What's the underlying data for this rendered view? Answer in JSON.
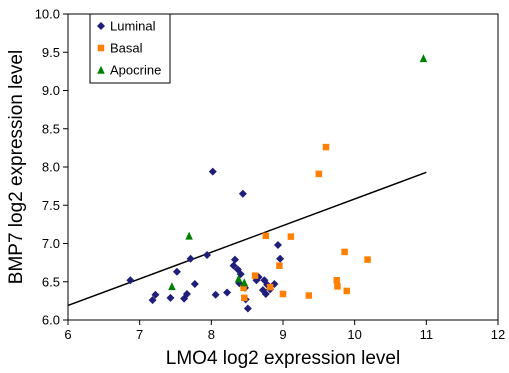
{
  "chart_data": {
    "type": "scatter",
    "xlabel": "LMO4 log2 expression level",
    "ylabel": "BMP7 log2 expression level",
    "xlim": [
      6,
      12
    ],
    "ylim": [
      6.0,
      10.0
    ],
    "x_ticks": [
      "6",
      "7",
      "8",
      "9",
      "10",
      "11",
      "12"
    ],
    "y_ticks": [
      "6.0",
      "6.5",
      "7.0",
      "7.5",
      "8.0",
      "8.5",
      "9.0",
      "9.5",
      "10.0"
    ],
    "grid": false,
    "legend_position": "top-left",
    "series": [
      {
        "name": "Luminal",
        "marker": "diamond",
        "color": "#1f1f7a",
        "points": [
          [
            6.87,
            6.52
          ],
          [
            7.18,
            6.26
          ],
          [
            7.22,
            6.33
          ],
          [
            7.43,
            6.29
          ],
          [
            7.52,
            6.63
          ],
          [
            7.62,
            6.28
          ],
          [
            7.66,
            6.34
          ],
          [
            7.71,
            6.8
          ],
          [
            7.77,
            6.47
          ],
          [
            7.94,
            6.85
          ],
          [
            8.02,
            7.94
          ],
          [
            8.06,
            6.33
          ],
          [
            8.22,
            6.36
          ],
          [
            8.31,
            6.71
          ],
          [
            8.33,
            6.79
          ],
          [
            8.37,
            6.66
          ],
          [
            8.39,
            6.48
          ],
          [
            8.41,
            6.6
          ],
          [
            8.44,
            7.65
          ],
          [
            8.47,
            6.42
          ],
          [
            8.48,
            6.27
          ],
          [
            8.51,
            6.15
          ],
          [
            8.63,
            6.52
          ],
          [
            8.66,
            6.56
          ],
          [
            8.72,
            6.39
          ],
          [
            8.74,
            6.52
          ],
          [
            8.76,
            6.34
          ],
          [
            8.78,
            6.46
          ],
          [
            8.82,
            6.4
          ],
          [
            8.88,
            6.47
          ],
          [
            8.93,
            6.98
          ],
          [
            8.96,
            6.8
          ]
        ]
      },
      {
        "name": "Basal",
        "marker": "square",
        "color": "#ff8000",
        "points": [
          [
            8.45,
            6.42
          ],
          [
            8.46,
            6.29
          ],
          [
            8.61,
            6.58
          ],
          [
            8.76,
            7.1
          ],
          [
            8.82,
            6.43
          ],
          [
            8.95,
            6.71
          ],
          [
            9.0,
            6.34
          ],
          [
            9.11,
            7.09
          ],
          [
            9.36,
            6.32
          ],
          [
            9.5,
            7.91
          ],
          [
            9.6,
            8.26
          ],
          [
            9.75,
            6.52
          ],
          [
            9.76,
            6.44
          ],
          [
            9.86,
            6.89
          ],
          [
            9.89,
            6.38
          ],
          [
            10.18,
            6.79
          ]
        ]
      },
      {
        "name": "Apocrine",
        "marker": "triangle",
        "color": "#008000",
        "points": [
          [
            7.45,
            6.44
          ],
          [
            7.69,
            7.1
          ],
          [
            8.38,
            6.54
          ],
          [
            8.46,
            6.49
          ],
          [
            10.96,
            9.42
          ]
        ]
      }
    ],
    "trendline": {
      "x": [
        6.0,
        11.0
      ],
      "y": [
        6.19,
        7.93
      ],
      "color": "#000000"
    }
  }
}
